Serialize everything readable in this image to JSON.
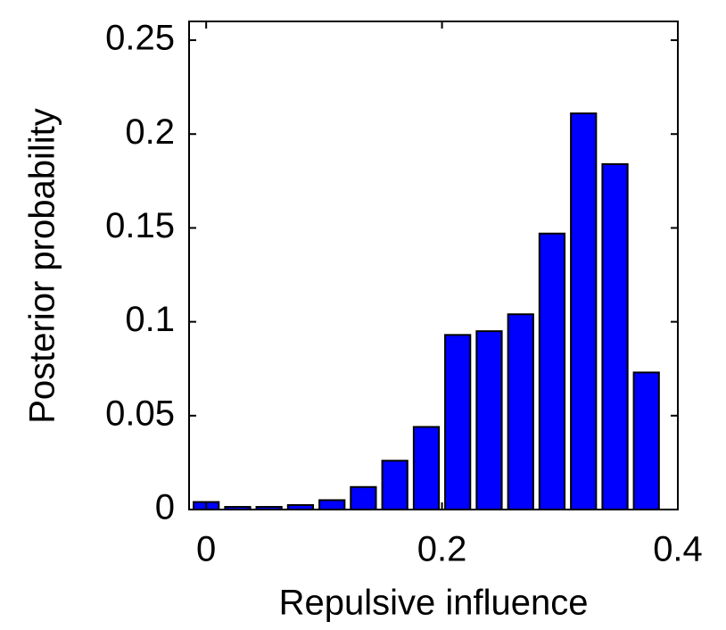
{
  "chart_data": {
    "type": "bar",
    "xlabel": "Repulsive influence",
    "ylabel": "Posterior probability",
    "x": [
      0,
      0.0267,
      0.0533,
      0.08,
      0.1067,
      0.1333,
      0.16,
      0.1867,
      0.2133,
      0.24,
      0.2667,
      0.2933,
      0.32,
      0.3467,
      0.3733
    ],
    "values": [
      0.004,
      0.0014,
      0.0014,
      0.0024,
      0.005,
      0.012,
      0.026,
      0.044,
      0.093,
      0.095,
      0.104,
      0.147,
      0.211,
      0.184,
      0.073
    ],
    "color": "#0000ff",
    "xlim": [
      -0.0145,
      0.4
    ],
    "xticks": [
      0,
      0.2,
      0.4
    ],
    "ylim": [
      0,
      0.26
    ],
    "yticks": [
      0,
      0.05,
      0.1,
      0.15,
      0.2,
      0.25
    ]
  }
}
